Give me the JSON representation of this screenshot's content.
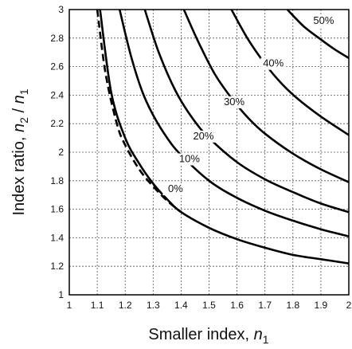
{
  "chart_data": {
    "type": "line",
    "title": "",
    "xlabel": "Smaller index, ",
    "xlabel_var": "n",
    "xlabel_sub": "1",
    "ylabel_pre": "Index ratio, ",
    "ylabel_var1": "n",
    "ylabel_sub1": "2",
    "ylabel_mid": " / ",
    "ylabel_var2": "n",
    "ylabel_sub2": "1",
    "xlim": [
      1,
      2
    ],
    "ylim": [
      1,
      3
    ],
    "x_ticks": [
      "1",
      "1.1",
      "1.2",
      "1.3",
      "1.4",
      "1.5",
      "1.6",
      "1.7",
      "1.8",
      "1.9",
      "2"
    ],
    "y_ticks": [
      "1",
      "1.2",
      "1.4",
      "1.6",
      "1.8",
      "2",
      "2.2",
      "2.4",
      "2.6",
      "2.8",
      "3"
    ],
    "grid": true,
    "series": [
      {
        "name": "0%",
        "style": "solid",
        "x": [
          1.11,
          1.15,
          1.2,
          1.25,
          1.3,
          1.35,
          1.4,
          1.5,
          1.6,
          1.7,
          1.8,
          1.9,
          2.0
        ],
        "y": [
          3.0,
          2.42,
          2.1,
          1.92,
          1.78,
          1.67,
          1.58,
          1.47,
          1.39,
          1.33,
          1.28,
          1.25,
          1.22
        ],
        "label_at": [
          1.38,
          1.72
        ]
      },
      {
        "name": "",
        "style": "dashed",
        "x": [
          1.1,
          1.13,
          1.17,
          1.2,
          1.25,
          1.3,
          1.35,
          1.4
        ],
        "y": [
          3.0,
          2.55,
          2.2,
          2.05,
          1.88,
          1.76,
          1.66,
          1.58
        ]
      },
      {
        "name": "10%",
        "style": "solid",
        "x": [
          1.18,
          1.22,
          1.26,
          1.3,
          1.35,
          1.4,
          1.5,
          1.6,
          1.7,
          1.8,
          1.9,
          2.0
        ],
        "y": [
          3.0,
          2.68,
          2.43,
          2.26,
          2.1,
          1.98,
          1.8,
          1.68,
          1.59,
          1.52,
          1.46,
          1.41
        ],
        "label_at": [
          1.43,
          1.93
        ]
      },
      {
        "name": "20%",
        "style": "solid",
        "x": [
          1.27,
          1.32,
          1.38,
          1.44,
          1.5,
          1.6,
          1.7,
          1.8,
          1.9,
          2.0
        ],
        "y": [
          3.0,
          2.7,
          2.43,
          2.24,
          2.1,
          1.93,
          1.81,
          1.72,
          1.64,
          1.58
        ],
        "label_at": [
          1.48,
          2.09
        ]
      },
      {
        "name": "30%",
        "style": "solid",
        "x": [
          1.41,
          1.46,
          1.52,
          1.58,
          1.64,
          1.7,
          1.8,
          1.9,
          2.0
        ],
        "y": [
          3.0,
          2.78,
          2.55,
          2.38,
          2.24,
          2.13,
          1.99,
          1.88,
          1.79
        ],
        "label_at": [
          1.59,
          2.33
        ]
      },
      {
        "name": "40%",
        "style": "solid",
        "x": [
          1.58,
          1.64,
          1.7,
          1.76,
          1.82,
          1.9,
          2.0
        ],
        "y": [
          3.0,
          2.79,
          2.62,
          2.48,
          2.37,
          2.25,
          2.12
        ],
        "label_at": [
          1.73,
          2.6
        ]
      },
      {
        "name": "50%",
        "style": "solid",
        "x": [
          1.78,
          1.84,
          1.9,
          1.95,
          2.0
        ],
        "y": [
          3.0,
          2.88,
          2.79,
          2.72,
          2.66
        ],
        "label_at": [
          1.91,
          2.9
        ]
      }
    ]
  }
}
